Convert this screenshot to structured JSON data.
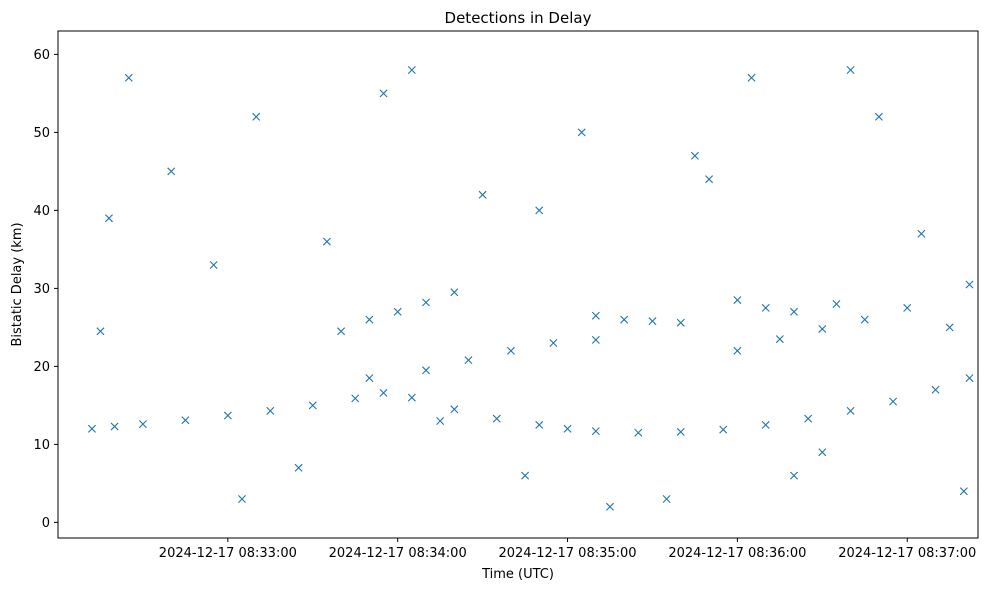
{
  "chart_data": {
    "type": "scatter",
    "title": "Detections in Delay",
    "xlabel": "Time (UTC)",
    "ylabel": "Bistatic Delay (km)",
    "marker": "x",
    "color": "#1f77b4",
    "grid": false,
    "legend": "none",
    "ylim": [
      -2,
      63
    ],
    "xlim": [
      "2024-12-17 08:32:00",
      "2024-12-17 08:37:25"
    ],
    "x_ticks": [
      "2024-12-17 08:33:00",
      "2024-12-17 08:34:00",
      "2024-12-17 08:35:00",
      "2024-12-17 08:36:00",
      "2024-12-17 08:37:00"
    ],
    "y_ticks": [
      "0",
      "10",
      "20",
      "30",
      "40",
      "50",
      "60"
    ],
    "series": [
      {
        "x": [
          "2024-12-17 08:32:12",
          "2024-12-17 08:32:20",
          "2024-12-17 08:32:30",
          "2024-12-17 08:32:45",
          "2024-12-17 08:33:00",
          "2024-12-17 08:33:15",
          "2024-12-17 08:33:30",
          "2024-12-17 08:33:45",
          "2024-12-17 08:33:55",
          "2024-12-17 08:34:05",
          "2024-12-17 08:34:20",
          "2024-12-17 08:34:35",
          "2024-12-17 08:34:50",
          "2024-12-17 08:35:00",
          "2024-12-17 08:35:10",
          "2024-12-17 08:35:25",
          "2024-12-17 08:35:40",
          "2024-12-17 08:35:55",
          "2024-12-17 08:36:10",
          "2024-12-17 08:36:25",
          "2024-12-17 08:36:40",
          "2024-12-17 08:36:55",
          "2024-12-17 08:37:10",
          "2024-12-17 08:37:22",
          "2024-12-17 08:33:50",
          "2024-12-17 08:34:10",
          "2024-12-17 08:34:25",
          "2024-12-17 08:34:40",
          "2024-12-17 08:34:55",
          "2024-12-17 08:35:10",
          "2024-12-17 08:33:40",
          "2024-12-17 08:33:50",
          "2024-12-17 08:34:00",
          "2024-12-17 08:34:10",
          "2024-12-17 08:34:20",
          "2024-12-17 08:35:10",
          "2024-12-17 08:35:20",
          "2024-12-17 08:35:30",
          "2024-12-17 08:35:40",
          "2024-12-17 08:36:00",
          "2024-12-17 08:36:15",
          "2024-12-17 08:36:30",
          "2024-12-17 08:36:45",
          "2024-12-17 08:37:00",
          "2024-12-17 08:37:22",
          "2024-12-17 08:36:00",
          "2024-12-17 08:36:10",
          "2024-12-17 08:36:20",
          "2024-12-17 08:36:35",
          "2024-12-17 08:32:15",
          "2024-12-17 08:32:25",
          "2024-12-17 08:32:40",
          "2024-12-17 08:32:55",
          "2024-12-17 08:33:10",
          "2024-12-17 08:33:25",
          "2024-12-17 08:33:35",
          "2024-12-17 08:34:05",
          "2024-12-17 08:34:30",
          "2024-12-17 08:34:45",
          "2024-12-17 08:35:05",
          "2024-12-17 08:35:35",
          "2024-12-17 08:35:50",
          "2024-12-17 08:36:05",
          "2024-12-17 08:36:30",
          "2024-12-17 08:36:50",
          "2024-12-17 08:37:05",
          "2024-12-17 08:37:20",
          "2024-12-17 08:32:18",
          "2024-12-17 08:33:05",
          "2024-12-17 08:33:55",
          "2024-12-17 08:34:15",
          "2024-12-17 08:34:50",
          "2024-12-17 08:35:15",
          "2024-12-17 08:35:45",
          "2024-12-17 08:36:20",
          "2024-12-17 08:36:40",
          "2024-12-17 08:37:15"
        ],
        "y": [
          12.0,
          12.3,
          12.6,
          13.1,
          13.7,
          14.3,
          15.0,
          15.9,
          16.6,
          16.0,
          14.5,
          13.3,
          12.5,
          12.0,
          11.7,
          11.5,
          11.6,
          11.9,
          12.5,
          13.3,
          14.3,
          15.5,
          17.0,
          18.5,
          18.5,
          19.5,
          20.8,
          22.0,
          23.0,
          23.4,
          24.5,
          26.0,
          27.0,
          28.2,
          29.5,
          26.5,
          26.0,
          25.8,
          25.6,
          22.0,
          23.5,
          24.8,
          26.0,
          27.5,
          30.5,
          28.5,
          27.5,
          27.0,
          28.0,
          24.5,
          57.0,
          45.0,
          33.0,
          52.0,
          7.0,
          36.0,
          58.0,
          42.0,
          6.0,
          50.0,
          3.0,
          44.0,
          57.0,
          9.0,
          52.0,
          37.0,
          4.0,
          39.0,
          3.0,
          55.0,
          13.0,
          40.0,
          2.0,
          47.0,
          6.0,
          58.0,
          25.0
        ]
      }
    ]
  }
}
